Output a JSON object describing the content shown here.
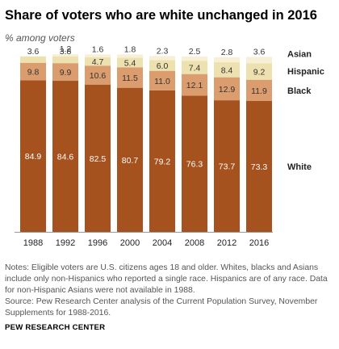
{
  "header": {
    "title": "Share of voters who are white unchanged in 2016",
    "subtitle": "% among voters"
  },
  "chart_data": {
    "type": "bar",
    "stacked": true,
    "categories": [
      "1988",
      "1992",
      "1996",
      "2000",
      "2004",
      "2008",
      "2012",
      "2016"
    ],
    "series": [
      {
        "name": "White",
        "values": [
          84.9,
          84.6,
          82.5,
          80.7,
          79.2,
          76.3,
          73.7,
          73.3
        ],
        "color": "#a5521f",
        "label_color": "#ffffff"
      },
      {
        "name": "Black",
        "values": [
          9.8,
          9.9,
          10.6,
          11.5,
          11.0,
          12.1,
          12.9,
          11.9
        ],
        "color": "#dc9d6e",
        "label_color": "#333333"
      },
      {
        "name": "Hispanic",
        "values": [
          3.6,
          3.8,
          4.7,
          5.4,
          6.0,
          7.4,
          8.4,
          9.2
        ],
        "color": "#ede2af",
        "label_color": "#333333"
      },
      {
        "name": "Asian",
        "values": [
          null,
          1.2,
          1.6,
          1.8,
          2.3,
          2.5,
          2.8,
          3.6
        ],
        "color": "#f7f0d6",
        "label_color": "#333333"
      }
    ],
    "ylim": [
      0,
      100
    ],
    "grid": false,
    "legend": "right"
  },
  "notes": {
    "note": "Notes: Eligible voters are U.S. citizens ages 18 and older. Whites, blacks and Asians include only non-Hispanics who reported a single race. Hispanics are of any race. Data for non-Hispanic Asians were not available in 1988.",
    "source": "Source: Pew Research Center analysis of the Current Population Survey, November Supplements for 1988-2016."
  },
  "brand": "PEW RESEARCH CENTER"
}
